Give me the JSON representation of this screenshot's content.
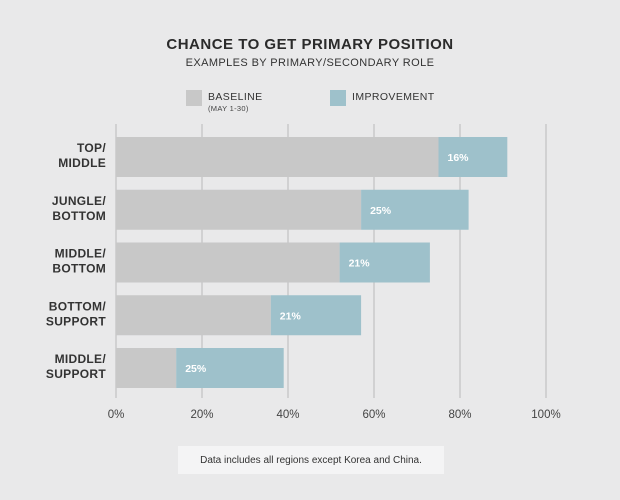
{
  "chart_data": {
    "type": "bar",
    "orientation": "horizontal",
    "stacked": true,
    "title": "CHANCE TO GET PRIMARY POSITION",
    "subtitle": "EXAMPLES BY PRIMARY/SECONDARY ROLE",
    "categories": [
      [
        "TOP/",
        "MIDDLE"
      ],
      [
        "JUNGLE/",
        "BOTTOM"
      ],
      [
        "MIDDLE/",
        "BOTTOM"
      ],
      [
        "BOTTOM/",
        "SUPPORT"
      ],
      [
        "MIDDLE/",
        "SUPPORT"
      ]
    ],
    "series": [
      {
        "name": "BASELINE",
        "sublabel": "(MAY 1-30)",
        "color": "#c8c8c8",
        "values": [
          75,
          57,
          52,
          36,
          14
        ]
      },
      {
        "name": "IMPROVEMENT",
        "color": "#9ec1cb",
        "values": [
          16,
          25,
          21,
          21,
          25
        ]
      }
    ],
    "data_labels": [
      "16%",
      "25%",
      "21%",
      "21%",
      "25%"
    ],
    "xlim": [
      0,
      100
    ],
    "xticks": [
      "0%",
      "20%",
      "40%",
      "60%",
      "80%",
      "100%"
    ],
    "xtick_values": [
      0,
      20,
      40,
      60,
      80,
      100
    ],
    "grid": true,
    "legend_position": "top"
  },
  "footnote": "Data includes all regions except Korea and China.",
  "colors": {
    "background": "#e9e9ea",
    "grid": "#b9b9b9"
  }
}
